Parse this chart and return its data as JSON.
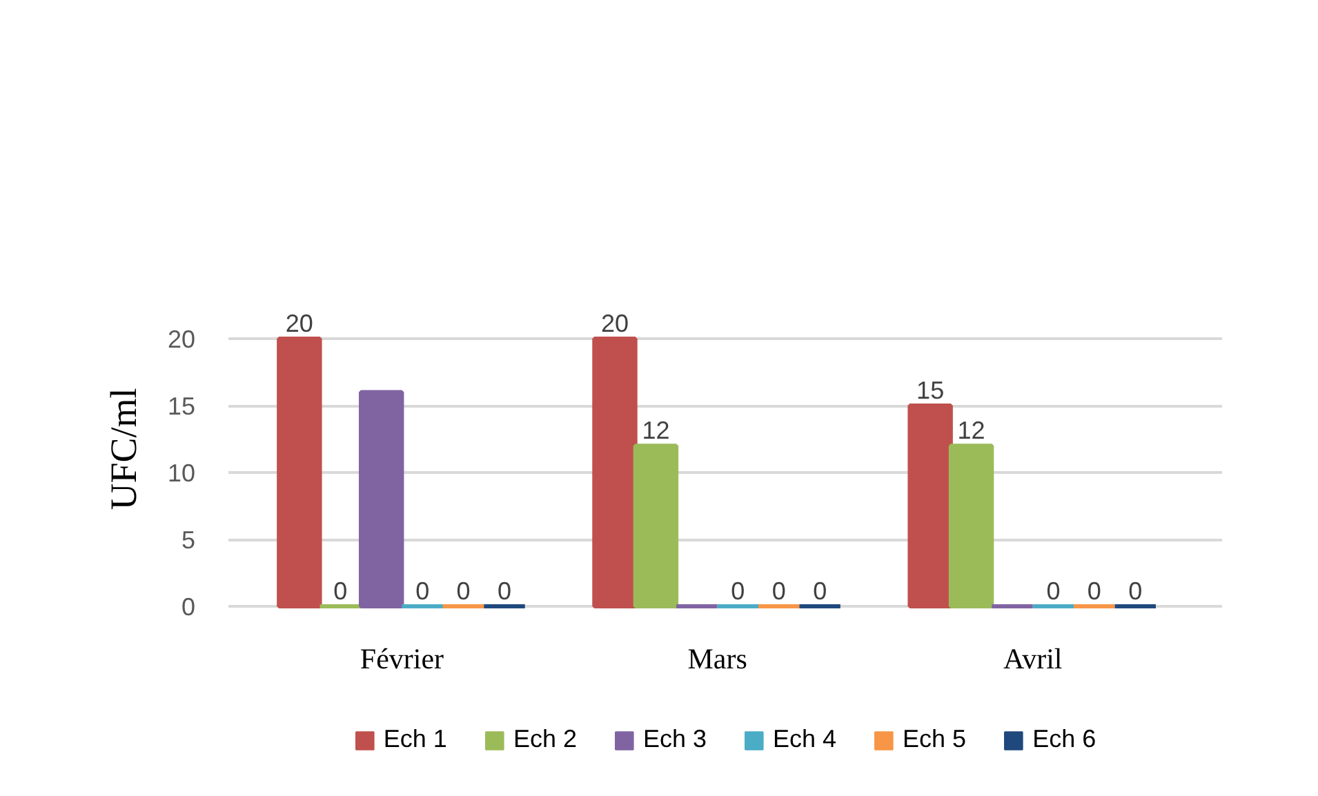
{
  "chart_data": {
    "type": "bar",
    "categories": [
      "Février",
      "Mars",
      "Avril"
    ],
    "ylabel": "UFC/ml",
    "series": [
      {
        "name": "Ech 1",
        "color": "#c0504d",
        "values": [
          20,
          20,
          15
        ],
        "value_labels": [
          "20",
          "20",
          "15"
        ]
      },
      {
        "name": "Ech 2",
        "color": "#9bbb59",
        "values": [
          0,
          12,
          12
        ],
        "value_labels": [
          "0",
          "12",
          "12"
        ]
      },
      {
        "name": "Ech 3",
        "color": "#8064a2",
        "values": [
          16,
          0,
          0
        ],
        "value_labels": [
          null,
          null,
          null
        ]
      },
      {
        "name": "Ech 4",
        "color": "#4bacc6",
        "values": [
          0,
          0,
          0
        ],
        "value_labels": [
          "0",
          "0",
          "0"
        ]
      },
      {
        "name": "Ech 5",
        "color": "#f79646",
        "values": [
          0,
          0,
          0
        ],
        "value_labels": [
          "0",
          "0",
          "0"
        ]
      },
      {
        "name": "Ech 6",
        "color": "#1f497d",
        "values": [
          0,
          0,
          0
        ],
        "value_labels": [
          "0",
          "0",
          "0"
        ]
      }
    ],
    "ylim": [
      0,
      20
    ],
    "yticks": [
      0,
      5,
      10,
      15,
      20
    ],
    "grid": "y",
    "legend": "bottom"
  }
}
